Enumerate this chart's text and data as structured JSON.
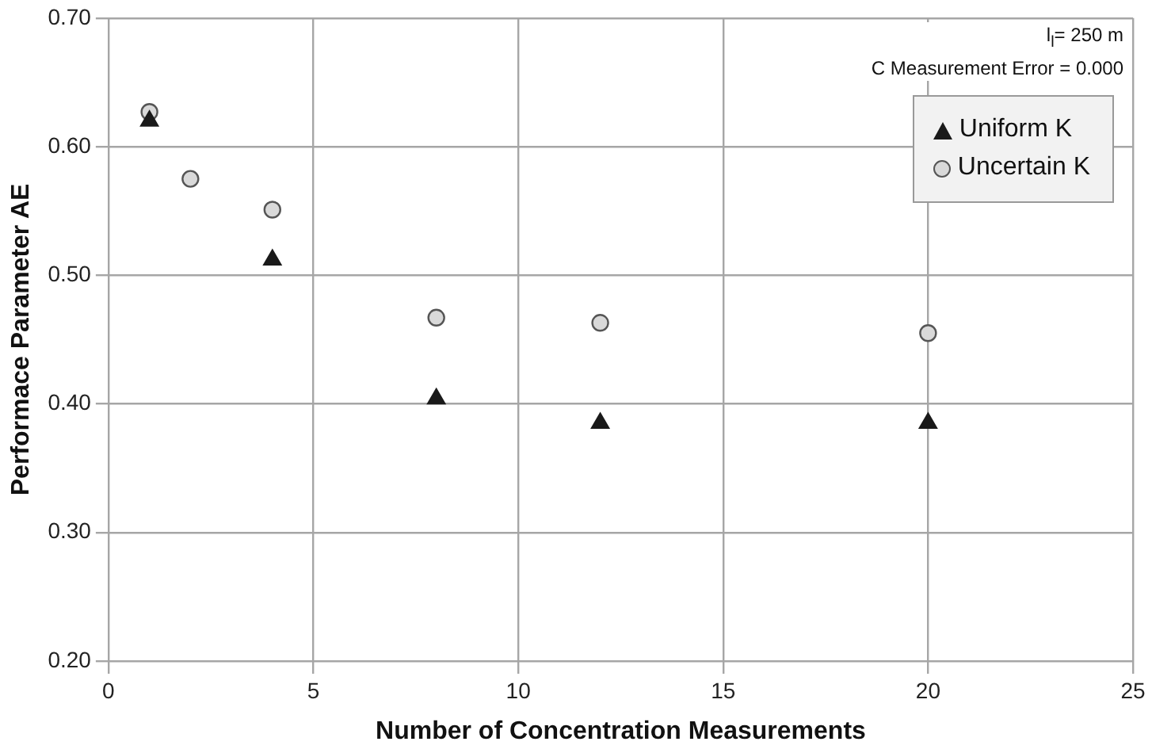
{
  "chart_data": {
    "type": "scatter",
    "xlabel": "Number of Concentration Measurements",
    "ylabel": "Performace Parameter AE",
    "annotations": [
      "l$_{l}$= 250 m",
      "C Measurement Error = 0.000"
    ],
    "series": [
      {
        "name": "Uniform K",
        "color": "#1a1a1a",
        "marker": "triangle",
        "x": [
          1,
          4,
          8,
          12,
          20
        ],
        "values": [
          0.62,
          0.512,
          0.404,
          0.385,
          0.385
        ]
      },
      {
        "name": "Uncertain K",
        "color": "#d9d9d9",
        "marker": "circle",
        "x": [
          1,
          2,
          4,
          8,
          12,
          20
        ],
        "values": [
          0.627,
          0.575,
          0.551,
          0.467,
          0.463,
          0.455
        ]
      }
    ],
    "xlim": [
      0,
      25
    ],
    "xticks": [
      0,
      5,
      10,
      15,
      20,
      25
    ],
    "ylim": [
      0.2,
      0.7
    ],
    "yticks": [
      {
        "value": 0.2,
        "label": "0.20"
      },
      {
        "value": 0.3,
        "label": "0.30"
      },
      {
        "value": 0.4,
        "label": "0.40"
      },
      {
        "value": 0.5,
        "label": "0.50"
      },
      {
        "value": 0.6,
        "label": "0.60"
      },
      {
        "value": 0.7,
        "label": "0.70"
      }
    ],
    "grid": true,
    "legend": "top right"
  }
}
